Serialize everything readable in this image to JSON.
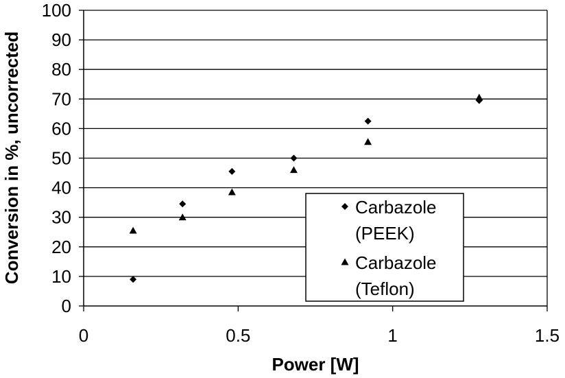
{
  "chart_data": {
    "type": "scatter",
    "title": "",
    "xlabel": "Power [W]",
    "ylabel": "Conversion in %, uncorrected",
    "xlim": [
      0,
      1.5
    ],
    "ylim": [
      0,
      100
    ],
    "xticks": [
      0,
      0.5,
      1,
      1.5
    ],
    "xtick_labels": [
      "0",
      "0.5",
      "1",
      "1.5"
    ],
    "yticks": [
      0,
      10,
      20,
      30,
      40,
      50,
      60,
      70,
      80,
      90,
      100
    ],
    "ytick_labels": [
      "0",
      "10",
      "20",
      "30",
      "40",
      "50",
      "60",
      "70",
      "80",
      "90",
      "100"
    ],
    "grid": "horizontal",
    "legend_position": "bottom-right",
    "series": [
      {
        "name": "Carbazole (PEEK)",
        "legend_lines": [
          "Carbazole",
          "(PEEK)"
        ],
        "marker": "diamond",
        "x": [
          0.16,
          0.32,
          0.48,
          0.68,
          0.92,
          1.28
        ],
        "y": [
          9,
          34.5,
          45.5,
          50,
          62.5,
          69.5
        ]
      },
      {
        "name": "Carbazole (Teflon)",
        "legend_lines": [
          "Carbazole",
          "(Teflon)"
        ],
        "marker": "triangle",
        "x": [
          0.16,
          0.32,
          0.48,
          0.68,
          0.92,
          1.28
        ],
        "y": [
          25.5,
          30,
          38.5,
          46,
          55.5,
          70.5
        ]
      }
    ],
    "colors": {
      "marker": "#000000",
      "grid": "#000000",
      "background": "#ffffff"
    }
  }
}
